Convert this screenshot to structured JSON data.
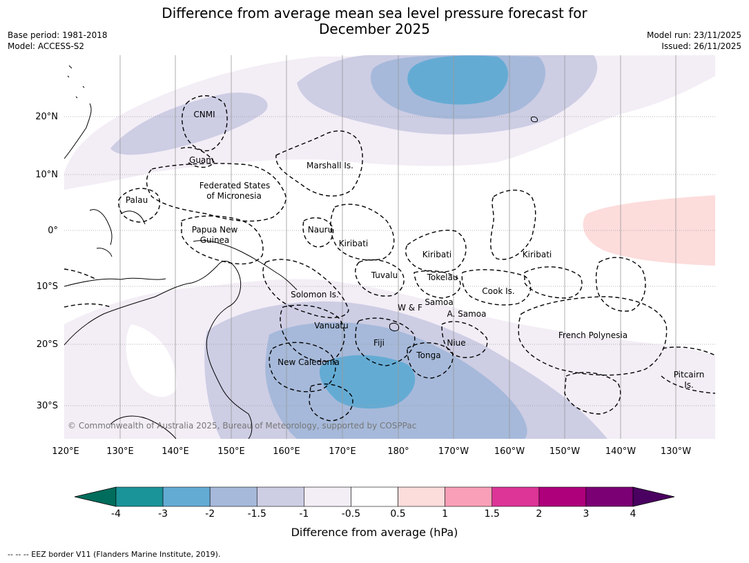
{
  "title_line1": "Difference from average mean sea level pressure forecast for",
  "title_line2": "December 2025",
  "meta_left": [
    "Base period: 1981-2018",
    "Model: ACCESS-S2"
  ],
  "meta_right": [
    "Model run: 23/11/2025",
    "Issued: 26/11/2025"
  ],
  "copyright": "© Commonwealth of Australia 2025, Bureau of Meteorology, supported by COSPPac",
  "lon_labels": [
    "120°E",
    "130°E",
    "140°E",
    "150°E",
    "160°E",
    "170°E",
    "180°",
    "170°W",
    "160°W",
    "150°W",
    "140°W",
    "130°W"
  ],
  "lat_labels": [
    "20°N",
    "10°N",
    "0°",
    "10°S",
    "20°S",
    "30°S"
  ],
  "regions": {
    "cnmi": "CNMI",
    "guam": "Guam",
    "marshall": "Marshall Is.",
    "fsm1": "Federated States",
    "fsm2": "of Micronesia",
    "palau": "Palau",
    "png1": "Papua New",
    "png2": "Guinea",
    "nauru": "Nauru",
    "kiribati_w": "Kiribati",
    "kiribati_c": "Kiribati",
    "kiribati_e": "Kiribati",
    "tuvalu": "Tuvalu",
    "tokelau": "Tokelau",
    "solomon": "Solomon Is.",
    "wf": "W & F",
    "samoa": "Samoa",
    "asamoa": "A. Samoa",
    "cook": "Cook Is.",
    "vanuatu": "Vanuatu",
    "fiji": "Fiji",
    "niue": "Niue",
    "tonga": "Tonga",
    "newcal": "New Caledonia",
    "frpoly": "French Polynesia",
    "pitcairn1": "Pitcairn",
    "pitcairn2": "Is."
  },
  "colorbar": {
    "ticks": [
      "-4",
      "-3",
      "-2",
      "-1.5",
      "-1",
      "-0.5",
      "0.5",
      "1",
      "1.5",
      "2",
      "3",
      "4"
    ],
    "colors": [
      "#1a9399",
      "#64abd4",
      "#a6b9da",
      "#cdcde4",
      "#f3edf6",
      "#ffffff",
      "#fddcdc",
      "#f99fb8",
      "#dc3597",
      "#ad007a",
      "#7b0074"
    ],
    "low_extend_color": "#006d5c",
    "high_extend_color": "#4a0060",
    "label": "Difference from average (hPa)"
  },
  "footer": "--  --  -- EEZ border V11 (Flanders Marine Institute, 2019)."
}
